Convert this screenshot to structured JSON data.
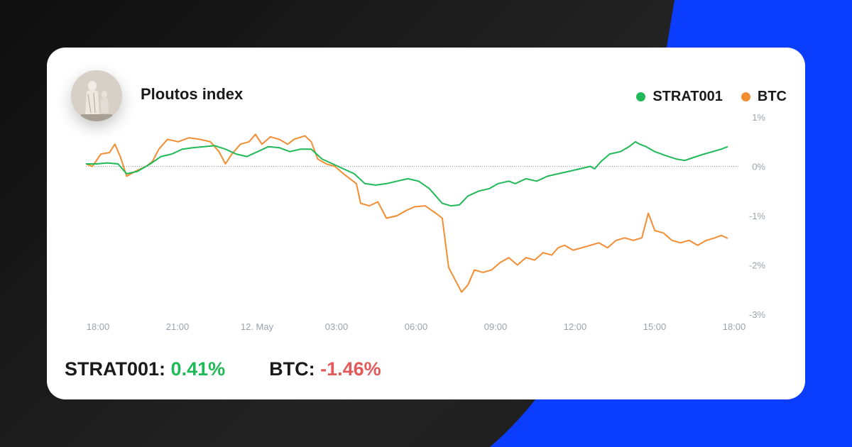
{
  "colors": {
    "strat": "#20b957",
    "btc": "#f28d31",
    "blue": "#0b3dff",
    "positive": "#20b957",
    "negative": "#e05a5a"
  },
  "header": {
    "title": "Ploutos index",
    "avatar_icon": "statue-avatar"
  },
  "legend": [
    {
      "label": "STRAT001",
      "color": "#20b957"
    },
    {
      "label": "BTC",
      "color": "#f28d31"
    }
  ],
  "chart_data": {
    "type": "line",
    "x_tick_labels": [
      "18:00",
      "21:00",
      "12. May",
      "03:00",
      "06:00",
      "09:00",
      "12:00",
      "15:00",
      "18:00"
    ],
    "y_tick_labels": [
      "1%",
      "0%",
      "-1%",
      "-2%",
      "-3%"
    ],
    "ylim": [
      -3,
      1
    ],
    "xlim_hours": [
      0,
      24
    ],
    "zero_line": true,
    "legend_position": "top-right",
    "series": [
      {
        "name": "STRAT001",
        "color": "#20b957",
        "points": [
          [
            0.0,
            0.05
          ],
          [
            0.5,
            0.05
          ],
          [
            1.0,
            0.07
          ],
          [
            1.5,
            0.05
          ],
          [
            1.9,
            -0.15
          ],
          [
            2.4,
            -0.1
          ],
          [
            3.0,
            0.05
          ],
          [
            3.5,
            0.2
          ],
          [
            4.0,
            0.25
          ],
          [
            4.5,
            0.35
          ],
          [
            5.0,
            0.38
          ],
          [
            5.5,
            0.4
          ],
          [
            6.0,
            0.42
          ],
          [
            6.5,
            0.35
          ],
          [
            7.0,
            0.25
          ],
          [
            7.5,
            0.2
          ],
          [
            8.0,
            0.3
          ],
          [
            8.5,
            0.4
          ],
          [
            9.0,
            0.38
          ],
          [
            9.5,
            0.3
          ],
          [
            10.0,
            0.35
          ],
          [
            10.5,
            0.35
          ],
          [
            11.0,
            0.15
          ],
          [
            11.5,
            0.05
          ],
          [
            12.0,
            -0.05
          ],
          [
            12.5,
            -0.15
          ],
          [
            13.0,
            -0.35
          ],
          [
            13.5,
            -0.38
          ],
          [
            14.0,
            -0.35
          ],
          [
            14.5,
            -0.3
          ],
          [
            15.0,
            -0.25
          ],
          [
            15.5,
            -0.3
          ],
          [
            16.0,
            -0.45
          ],
          [
            16.6,
            -0.75
          ],
          [
            17.0,
            -0.8
          ],
          [
            17.4,
            -0.78
          ],
          [
            17.8,
            -0.6
          ],
          [
            18.3,
            -0.5
          ],
          [
            18.8,
            -0.45
          ],
          [
            19.2,
            -0.35
          ],
          [
            19.7,
            -0.3
          ],
          [
            20.0,
            -0.35
          ],
          [
            20.5,
            -0.25
          ],
          [
            21.0,
            -0.3
          ],
          [
            21.5,
            -0.2
          ],
          [
            22.0,
            -0.15
          ],
          [
            22.5,
            -0.1
          ],
          [
            23.0,
            -0.05
          ],
          [
            23.5,
            0.0
          ],
          [
            23.7,
            -0.05
          ],
          [
            24.0,
            0.1
          ],
          [
            24.4,
            0.25
          ],
          [
            24.9,
            0.3
          ],
          [
            25.3,
            0.4
          ],
          [
            25.6,
            0.5
          ],
          [
            25.8,
            0.45
          ],
          [
            26.1,
            0.4
          ],
          [
            26.5,
            0.3
          ],
          [
            27.0,
            0.22
          ],
          [
            27.5,
            0.15
          ],
          [
            27.9,
            0.12
          ],
          [
            28.3,
            0.18
          ],
          [
            28.8,
            0.25
          ],
          [
            29.2,
            0.3
          ],
          [
            29.6,
            0.35
          ],
          [
            29.9,
            0.4
          ]
        ]
      },
      {
        "name": "BTC",
        "color": "#f28d31",
        "points": [
          [
            0.0,
            0.05
          ],
          [
            0.3,
            0.0
          ],
          [
            0.7,
            0.25
          ],
          [
            1.1,
            0.28
          ],
          [
            1.35,
            0.45
          ],
          [
            1.6,
            0.2
          ],
          [
            1.9,
            -0.2
          ],
          [
            2.3,
            -0.1
          ],
          [
            2.8,
            0.0
          ],
          [
            3.1,
            0.1
          ],
          [
            3.4,
            0.35
          ],
          [
            3.8,
            0.55
          ],
          [
            4.3,
            0.5
          ],
          [
            4.8,
            0.58
          ],
          [
            5.3,
            0.55
          ],
          [
            5.8,
            0.5
          ],
          [
            6.2,
            0.3
          ],
          [
            6.5,
            0.05
          ],
          [
            6.8,
            0.25
          ],
          [
            7.2,
            0.45
          ],
          [
            7.6,
            0.5
          ],
          [
            7.9,
            0.65
          ],
          [
            8.2,
            0.45
          ],
          [
            8.6,
            0.6
          ],
          [
            9.0,
            0.55
          ],
          [
            9.4,
            0.45
          ],
          [
            9.7,
            0.55
          ],
          [
            10.2,
            0.62
          ],
          [
            10.5,
            0.5
          ],
          [
            10.8,
            0.15
          ],
          [
            11.2,
            0.05
          ],
          [
            11.6,
            0.0
          ],
          [
            12.0,
            -0.15
          ],
          [
            12.3,
            -0.25
          ],
          [
            12.6,
            -0.35
          ],
          [
            12.8,
            -0.75
          ],
          [
            13.2,
            -0.8
          ],
          [
            13.6,
            -0.72
          ],
          [
            14.0,
            -1.05
          ],
          [
            14.5,
            -1.0
          ],
          [
            14.9,
            -0.9
          ],
          [
            15.3,
            -0.82
          ],
          [
            15.8,
            -0.8
          ],
          [
            16.3,
            -0.95
          ],
          [
            16.6,
            -1.05
          ],
          [
            16.9,
            -2.05
          ],
          [
            17.2,
            -2.3
          ],
          [
            17.5,
            -2.55
          ],
          [
            17.8,
            -2.4
          ],
          [
            18.1,
            -2.1
          ],
          [
            18.5,
            -2.15
          ],
          [
            18.9,
            -2.1
          ],
          [
            19.3,
            -1.95
          ],
          [
            19.7,
            -1.85
          ],
          [
            20.1,
            -2.0
          ],
          [
            20.5,
            -1.85
          ],
          [
            20.9,
            -1.9
          ],
          [
            21.3,
            -1.75
          ],
          [
            21.7,
            -1.8
          ],
          [
            22.0,
            -1.65
          ],
          [
            22.3,
            -1.6
          ],
          [
            22.7,
            -1.7
          ],
          [
            23.1,
            -1.65
          ],
          [
            23.5,
            -1.6
          ],
          [
            23.9,
            -1.55
          ],
          [
            24.3,
            -1.65
          ],
          [
            24.7,
            -1.5
          ],
          [
            25.1,
            -1.45
          ],
          [
            25.5,
            -1.5
          ],
          [
            25.9,
            -1.45
          ],
          [
            26.2,
            -0.95
          ],
          [
            26.5,
            -1.3
          ],
          [
            26.9,
            -1.35
          ],
          [
            27.3,
            -1.5
          ],
          [
            27.7,
            -1.55
          ],
          [
            28.1,
            -1.5
          ],
          [
            28.5,
            -1.6
          ],
          [
            28.9,
            -1.5
          ],
          [
            29.3,
            -1.45
          ],
          [
            29.6,
            -1.4
          ],
          [
            29.9,
            -1.46
          ]
        ]
      }
    ]
  },
  "summary": [
    {
      "label": "STRAT001:",
      "value": "0.41%",
      "sign": "pos"
    },
    {
      "label": "BTC:",
      "value": "-1.46%",
      "sign": "neg"
    }
  ]
}
